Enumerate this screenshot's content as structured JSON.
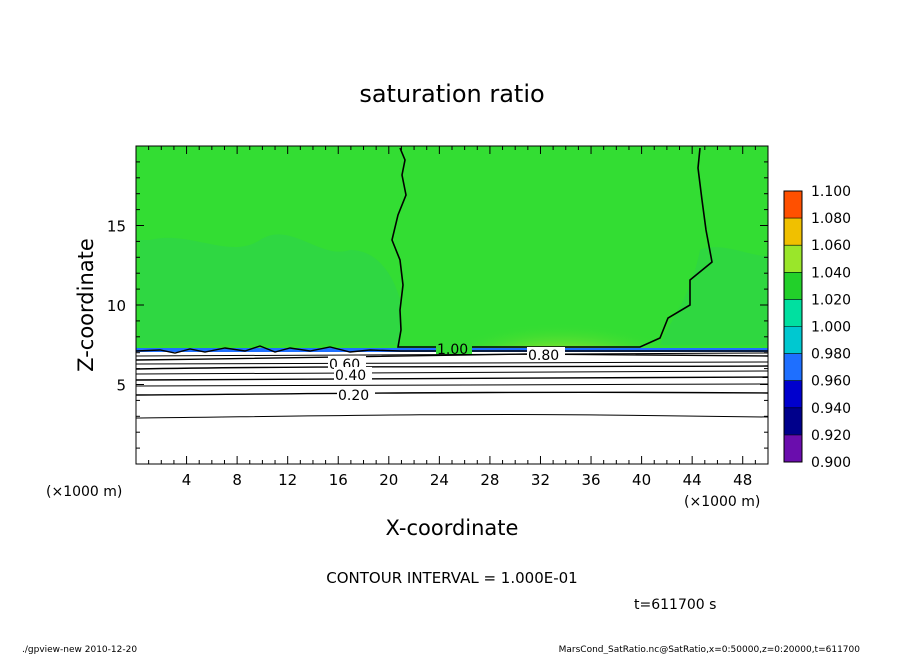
{
  "chart_data": {
    "type": "heatmap",
    "title": "saturation ratio",
    "xlabel": "X-coordinate",
    "ylabel": "Z-coordinate",
    "x_unit_left": "(×1000 m)",
    "x_unit_right": "(×1000 m)",
    "xlim": [
      0,
      50
    ],
    "ylim": [
      0,
      20
    ],
    "x_ticks": [
      4,
      8,
      12,
      16,
      20,
      24,
      28,
      32,
      36,
      40,
      44,
      48
    ],
    "y_ticks": [
      5,
      10,
      15
    ],
    "colorbar": {
      "levels": [
        "0.900",
        "0.920",
        "0.940",
        "0.960",
        "0.980",
        "1.000",
        "1.020",
        "1.040",
        "1.060",
        "1.080",
        "1.100"
      ],
      "colors": [
        "#6a0dad",
        "#00008b",
        "#0000cd",
        "#1e6fff",
        "#00c8d0",
        "#00e0a0",
        "#22d02a",
        "#9ae62a",
        "#f0c000",
        "#ff5000",
        "#ff8080"
      ]
    },
    "fields": [
      {
        "region": "z > 7.2 (most of domain)",
        "value_range": [
          1.0,
          1.02
        ],
        "color": "#33dd33"
      },
      {
        "region": "x 8-20, z 7.5-13",
        "value_range": [
          0.98,
          1.0
        ],
        "color": "#29cf54"
      },
      {
        "region": "x 24-40, z 7.2-8",
        "value_range": [
          1.02,
          1.06
        ],
        "color": "#ffb000"
      },
      {
        "region": "z = 7.1",
        "value_range": [
          0.92,
          0.98
        ],
        "color": "#1e6fff"
      },
      {
        "region": "z < 7",
        "value_range": [
          0,
          0.9
        ],
        "color": "#ffffff"
      }
    ],
    "contours": [
      {
        "level": 1.0,
        "label": "1.00",
        "label_x": 25,
        "label_z": 7.2
      },
      {
        "level": 0.8,
        "label": "0.80",
        "label_x": 32,
        "label_z": 6.7
      },
      {
        "level": 0.6,
        "label": "0.60",
        "label_x": 17.5,
        "label_z": 6.1
      },
      {
        "level": 0.4,
        "label": "0.40",
        "label_x": 17.5,
        "label_z": 5.5
      },
      {
        "level": 0.2,
        "label": "0.20",
        "label_x": 17.5,
        "label_z": 4.4
      }
    ],
    "contour_interval": "CONTOUR INTERVAL = 1.000E-01",
    "time": "t=611700 s"
  },
  "footer": {
    "left": "./gpview-new  2010-12-20",
    "right": "MarsCond_SatRatio.nc@SatRatio,x=0:50000,z=0:20000,t=611700"
  }
}
